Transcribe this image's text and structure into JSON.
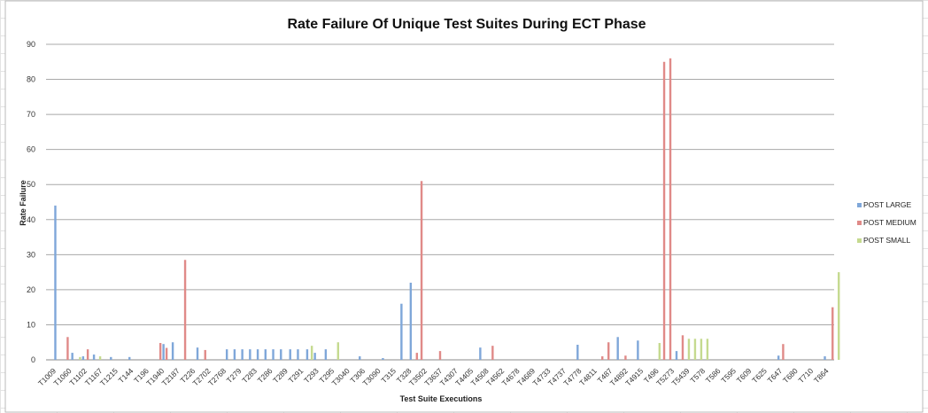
{
  "chart_data": {
    "type": "bar",
    "title": "Rate Failure Of Unique Test Suites During ECT Phase",
    "xlabel": "Test Suite Executions",
    "ylabel": "Rate Failure",
    "ylim": [
      0,
      90
    ],
    "yticks": [
      0,
      10,
      20,
      30,
      40,
      50,
      60,
      70,
      80,
      90
    ],
    "grid": true,
    "legend_position": "right",
    "colors": {
      "POST LARGE": "#7fa7d9",
      "POST MEDIUM": "#e08a88",
      "POST SMALL": "#c5da8f"
    },
    "tick_labels": [
      "T1009",
      "T1060",
      "T1102",
      "T1167",
      "T1215",
      "T144",
      "T196",
      "T1940",
      "T2187",
      "T226",
      "T2702",
      "T2768",
      "T279",
      "T283",
      "T286",
      "T289",
      "T291",
      "T293",
      "T295",
      "T3040",
      "T306",
      "T3090",
      "T315",
      "T328",
      "T3502",
      "T3637",
      "T4307",
      "T4405",
      "T4508",
      "T4562",
      "T4678",
      "T4689",
      "T4733",
      "T4737",
      "T4778",
      "T4811",
      "T487",
      "T4892",
      "T4915",
      "T496",
      "T5273",
      "T5439",
      "T578",
      "T586",
      "T595",
      "T609",
      "T625",
      "T647",
      "T680",
      "T710",
      "T864"
    ],
    "series": [
      {
        "name": "POST LARGE",
        "points": [
          {
            "x": 0.1,
            "y": 44
          },
          {
            "x": 1.2,
            "y": 2
          },
          {
            "x": 1.9,
            "y": 1
          },
          {
            "x": 2.6,
            "y": 1.5
          },
          {
            "x": 3.7,
            "y": 0.8
          },
          {
            "x": 4.9,
            "y": 0.8
          },
          {
            "x": 7.1,
            "y": 4.5
          },
          {
            "x": 7.7,
            "y": 5
          },
          {
            "x": 9.3,
            "y": 3.5
          },
          {
            "x": 11.2,
            "y": 3
          },
          {
            "x": 11.7,
            "y": 3
          },
          {
            "x": 12.2,
            "y": 3
          },
          {
            "x": 12.7,
            "y": 3
          },
          {
            "x": 13.2,
            "y": 3
          },
          {
            "x": 13.7,
            "y": 3
          },
          {
            "x": 14.2,
            "y": 3
          },
          {
            "x": 14.7,
            "y": 3
          },
          {
            "x": 15.3,
            "y": 3
          },
          {
            "x": 15.8,
            "y": 3
          },
          {
            "x": 16.4,
            "y": 3
          },
          {
            "x": 16.9,
            "y": 2
          },
          {
            "x": 17.6,
            "y": 3
          },
          {
            "x": 19.8,
            "y": 1
          },
          {
            "x": 21.3,
            "y": 0.5
          },
          {
            "x": 22.5,
            "y": 16
          },
          {
            "x": 23.1,
            "y": 22
          },
          {
            "x": 27.6,
            "y": 3.5
          },
          {
            "x": 33.9,
            "y": 4.3
          },
          {
            "x": 36.5,
            "y": 6.5
          },
          {
            "x": 37.8,
            "y": 5.5
          },
          {
            "x": 40.3,
            "y": 2.5
          },
          {
            "x": 46.9,
            "y": 1.2
          },
          {
            "x": 49.9,
            "y": 1
          }
        ]
      },
      {
        "name": "POST MEDIUM",
        "points": [
          {
            "x": 0.9,
            "y": 6.5
          },
          {
            "x": 2.2,
            "y": 3
          },
          {
            "x": 6.9,
            "y": 4.8
          },
          {
            "x": 7.3,
            "y": 3.4
          },
          {
            "x": 8.5,
            "y": 28.5
          },
          {
            "x": 9.8,
            "y": 2.8
          },
          {
            "x": 23.5,
            "y": 2
          },
          {
            "x": 23.8,
            "y": 51
          },
          {
            "x": 25.0,
            "y": 2.5
          },
          {
            "x": 28.4,
            "y": 4
          },
          {
            "x": 35.5,
            "y": 1
          },
          {
            "x": 35.9,
            "y": 5
          },
          {
            "x": 37.0,
            "y": 1.2
          },
          {
            "x": 39.5,
            "y": 85
          },
          {
            "x": 39.9,
            "y": 86
          },
          {
            "x": 40.7,
            "y": 7
          },
          {
            "x": 47.2,
            "y": 4.5
          },
          {
            "x": 50.4,
            "y": 15
          }
        ]
      },
      {
        "name": "POST SMALL",
        "points": [
          {
            "x": 1.7,
            "y": 0.8
          },
          {
            "x": 3.0,
            "y": 1
          },
          {
            "x": 16.7,
            "y": 4
          },
          {
            "x": 18.4,
            "y": 5
          },
          {
            "x": 39.2,
            "y": 4.8
          },
          {
            "x": 41.1,
            "y": 6
          },
          {
            "x": 41.5,
            "y": 6
          },
          {
            "x": 41.9,
            "y": 6
          },
          {
            "x": 42.3,
            "y": 6
          },
          {
            "x": 50.8,
            "y": 25
          }
        ]
      }
    ]
  }
}
